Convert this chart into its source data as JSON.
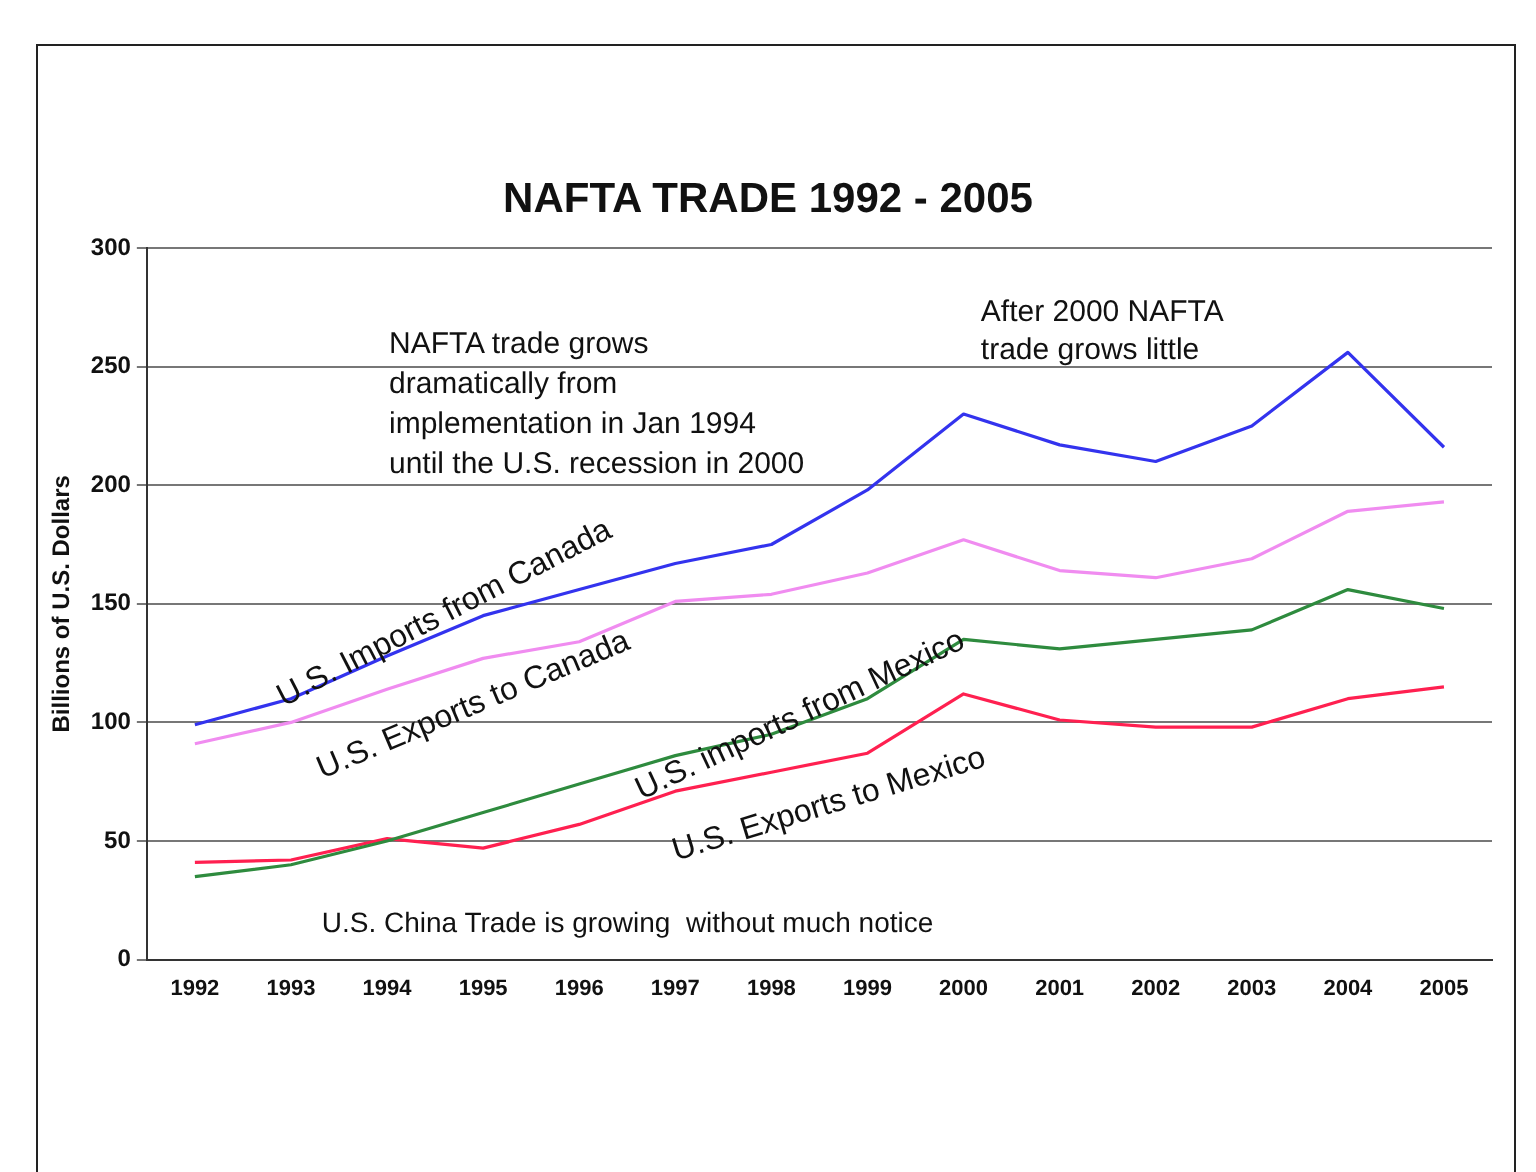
{
  "chart_data": {
    "type": "line",
    "title": "NAFTA TRADE 1992 - 2005",
    "ylabel": "Billions of U.S. Dollars",
    "categories": [
      "1992",
      "1993",
      "1994",
      "1995",
      "1996",
      "1997",
      "1998",
      "1999",
      "2000",
      "2001",
      "2002",
      "2003",
      "2004",
      "2005"
    ],
    "series": [
      {
        "name": "U.S. Imports from Canada",
        "color": "#3333ee",
        "values": [
          99,
          110,
          128,
          145,
          156,
          167,
          175,
          198,
          230,
          217,
          210,
          225,
          256,
          216
        ]
      },
      {
        "name": "U.S. Exports to Canada",
        "color": "#f08cf0",
        "values": [
          91,
          100,
          114,
          127,
          134,
          151,
          154,
          163,
          177,
          164,
          161,
          169,
          189,
          193
        ]
      },
      {
        "name": "U.S. imports from Mexico",
        "color": "#2e8b3e",
        "values": [
          35,
          40,
          50,
          62,
          74,
          86,
          95,
          110,
          135,
          131,
          135,
          139,
          156,
          148
        ]
      },
      {
        "name": "U.S. Exports to Mexico",
        "color": "#ff2050",
        "values": [
          41,
          42,
          51,
          47,
          57,
          71,
          79,
          87,
          112,
          101,
          98,
          98,
          110,
          115
        ]
      }
    ],
    "ylim": [
      0,
      300
    ],
    "yticks": [
      0,
      50,
      100,
      150,
      200,
      250,
      300
    ],
    "grid": "y",
    "legend": false,
    "marker": "none",
    "line_style": "solid",
    "annotations": [
      "NAFTA trade grows\ndramatically from\nimplementation in Jan 1994\nuntil the U.S. recession in 2000",
      "After 2000 NAFTA\ntrade grows little",
      "U.S. China Trade is growing  without much notice"
    ]
  }
}
